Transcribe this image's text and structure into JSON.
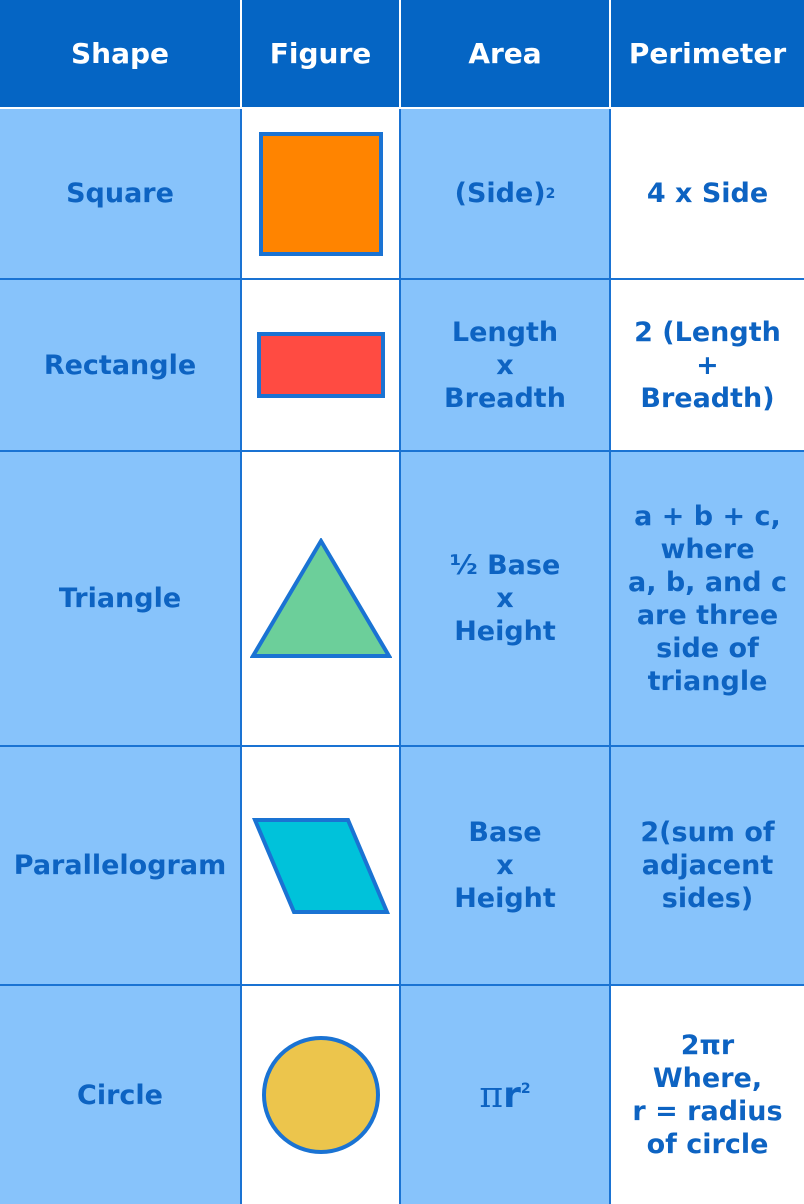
{
  "headers": [
    "Shape",
    "Figure",
    "Area",
    "Perimeter"
  ],
  "rows": [
    {
      "shape": "Square",
      "figure_icon": "square-icon",
      "figure_color": "#ff8400",
      "area_base": "(Side)",
      "area_sup": "2",
      "perimeter": [
        "4 x Side"
      ]
    },
    {
      "shape": "Rectangle",
      "figure_icon": "rectangle-icon",
      "figure_color": "#ff4b42",
      "area": [
        "Length",
        "x",
        "Breadth"
      ],
      "perimeter": [
        "2 (Length",
        "+",
        "Breadth)"
      ]
    },
    {
      "shape": "Triangle",
      "figure_icon": "triangle-icon",
      "figure_color": "#6ccf9a",
      "area": [
        "½ Base",
        "x",
        "Height"
      ],
      "perimeter": [
        "a + b + c,",
        "where",
        "a, b, and c",
        "are three",
        "side of",
        "triangle"
      ]
    },
    {
      "shape": "Parallelogram",
      "figure_icon": "parallelogram-icon",
      "figure_color": "#00c2da",
      "area": [
        "Base",
        "x",
        "Height"
      ],
      "perimeter": [
        "2(sum of",
        "adjacent",
        "sides)"
      ]
    },
    {
      "shape": "Circle",
      "figure_icon": "circle-icon",
      "figure_color": "#ecc54c",
      "area_pi": "π",
      "area_base": "r",
      "area_sup": "2",
      "perimeter": [
        "2πr",
        "Where,",
        "r = radius",
        "of circle"
      ]
    }
  ],
  "colors": {
    "header_bg": "#0565c4",
    "light_blue": "#87c3fb",
    "text_blue": "#0d63c2",
    "outline_blue": "#1a73d3"
  }
}
